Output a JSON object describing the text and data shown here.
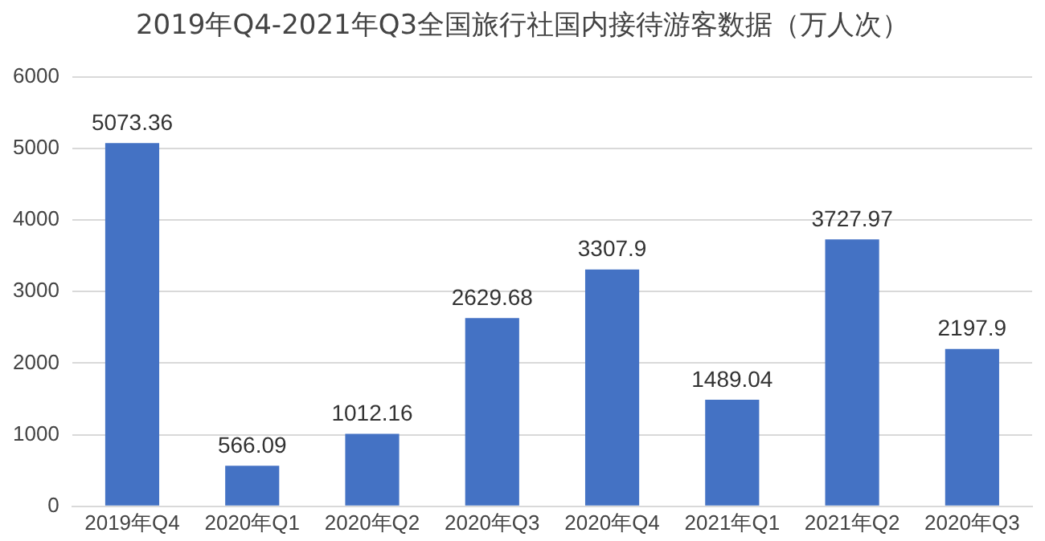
{
  "chart_data": {
    "type": "bar",
    "title": "2019年Q4-2021年Q3全国旅行社国内接待游客数据（万人次）",
    "categories": [
      "2019年Q4",
      "2020年Q1",
      "2020年Q2",
      "2020年Q3",
      "2020年Q4",
      "2021年Q1",
      "2021年Q2",
      "2020年Q3"
    ],
    "values": [
      5073.36,
      566.09,
      1012.16,
      2629.68,
      3307.9,
      1489.04,
      3727.97,
      2197.9
    ],
    "color": "#4472c4",
    "ylim": [
      0,
      6000
    ],
    "yticks": [
      0,
      1000,
      2000,
      3000,
      4000,
      5000,
      6000
    ],
    "grid": "y",
    "data_labels": true
  }
}
